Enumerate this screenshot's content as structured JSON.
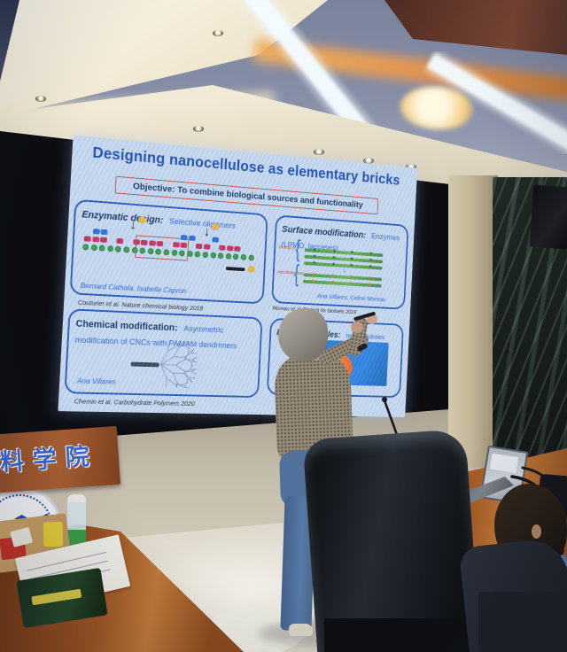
{
  "slide": {
    "title": "Designing nanocellulose as elementary bricks",
    "objective": "Objective: To combine biological sources and functionality",
    "panels": [
      {
        "heading": "Enzymatic design:",
        "subtitle": "Selective oligomers",
        "attribution": "Bernard Cathala, Isabelle Capron",
        "citation": "Couturier et al. Nature chemical biology 2018"
      },
      {
        "heading": "Surface modification:",
        "subtitle": "Enzymes (LPMO, laccases)",
        "label_top": "biological",
        "label_bottom": "non biological",
        "attribution": "Ana Villares, Celine Moreau",
        "citation": "Moreau et al. Biotech for biofuels 2019"
      },
      {
        "heading": "Chemical modification:",
        "subtitle": "Asymmetric modification of CNCs with PAMAM dendrimers",
        "attribution": "Ana Villares",
        "citation": "Chemin et al. Carbohydrate Polymers 2020"
      },
      {
        "heading": "Hybride particles:",
        "subtitle": "nanocelluloses"
      }
    ]
  },
  "room": {
    "wall_sign_text": "料学院",
    "colors": {
      "slide_bg": "#c7d9f0",
      "slide_title_blue": "#1d4fae",
      "panel_border_blue": "#2b5bb5",
      "objective_border_red": "#c0504d",
      "accent_orange": "#ef6a2a",
      "hybrid_image_blue": "#2b7bd4",
      "desk_wood": "#a85f28",
      "marble_wall": "#232e28",
      "sign_text_blue": "#3a63cc"
    }
  }
}
